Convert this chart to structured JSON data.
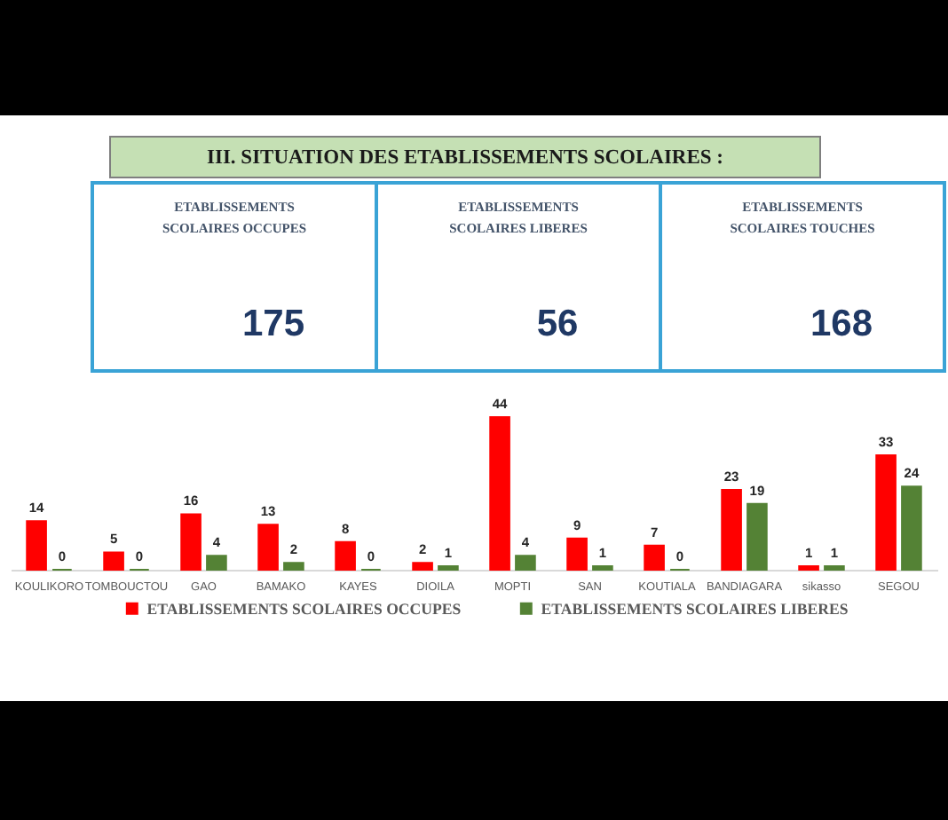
{
  "chart_data": [
    {
      "type": "other",
      "title": "III. SITUATION DES ETABLISSEMENTS SCOLAIRES :",
      "categories": [
        "ETABLISSEMENTS SCOLAIRES OCCUPES",
        "ETABLISSEMENTS SCOLAIRES LIBERES",
        "ETABLISSEMENTS SCOLAIRES TOUCHES"
      ],
      "values": [
        175,
        56,
        168
      ],
      "data_labels": true,
      "color": "#3aa3d6"
    },
    {
      "type": "bar",
      "categories": [
        "KOULIKORO",
        "TOMBOUCTOU",
        "GAO",
        "BAMAKO",
        "KAYES",
        "DIOILA",
        "MOPTI",
        "SAN",
        "KOUTIALA",
        "BANDIAGARA",
        "sikasso",
        "SEGOU"
      ],
      "series": [
        {
          "name": "ETABLISSEMENTS SCOLAIRES OCCUPES",
          "color": "#ff0000",
          "values": [
            14,
            5,
            16,
            13,
            8,
            2,
            44,
            9,
            7,
            23,
            1,
            33
          ]
        },
        {
          "name": "ETABLISSEMENTS SCOLAIRES LIBERES",
          "color": "#548235",
          "values": [
            0,
            0,
            4,
            2,
            0,
            1,
            4,
            1,
            0,
            19,
            1,
            24
          ]
        }
      ],
      "data_labels": true,
      "legend": "bottom",
      "tick_labels": "x"
    }
  ]
}
